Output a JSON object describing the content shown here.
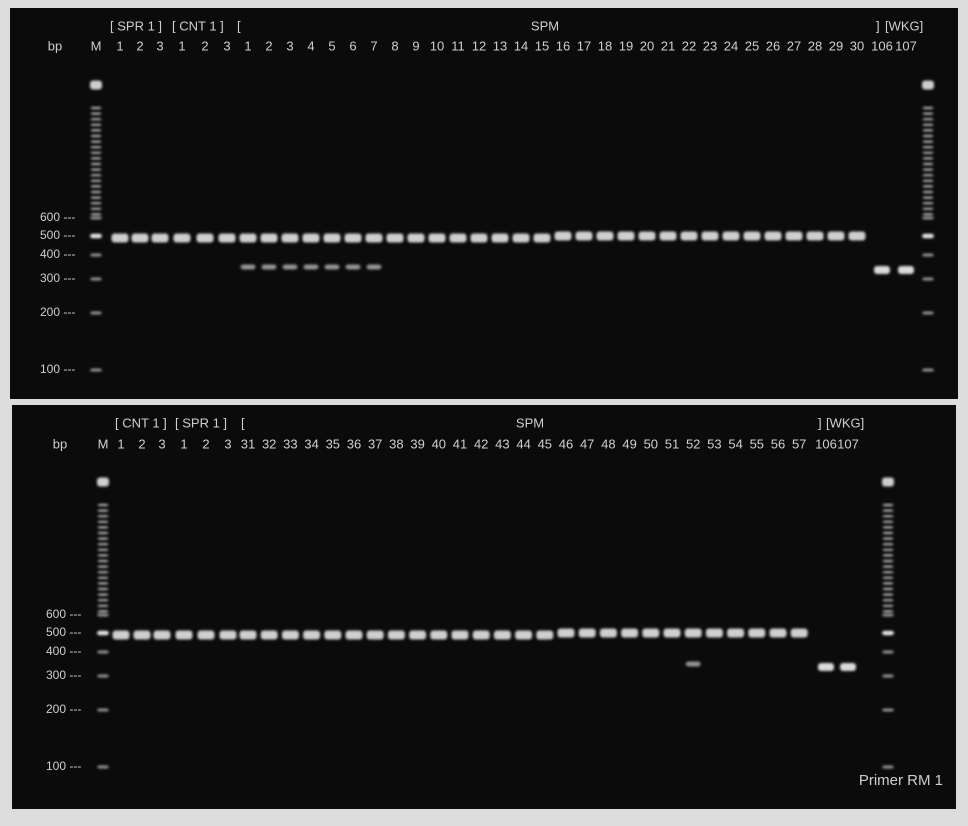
{
  "panels": [
    {
      "group_labels": [
        "[ SPR 1 ]",
        "[ CNT 1 ]",
        "[",
        "SPM",
        "]",
        "[WKG]"
      ],
      "axis_label": "bp",
      "marker_label": "M",
      "lane_labels": [
        "1",
        "2",
        "3",
        "1",
        "2",
        "3",
        "1",
        "2",
        "3",
        "4",
        "5",
        "6",
        "7",
        "8",
        "9",
        "10",
        "11",
        "12",
        "13",
        "14",
        "15",
        "16",
        "17",
        "18",
        "19",
        "20",
        "21",
        "22",
        "23",
        "24",
        "25",
        "26",
        "27",
        "28",
        "29",
        "30",
        "106",
        "107"
      ],
      "size_labels": [
        "600 ---",
        "500 ---",
        "400 ---",
        "300 ---",
        "200 ---",
        "100 ---"
      ]
    },
    {
      "group_labels": [
        "[ CNT 1 ]",
        "[ SPR 1 ]",
        "[",
        "SPM",
        "]",
        "[WKG]"
      ],
      "axis_label": "bp",
      "marker_label": "M",
      "lane_labels": [
        "1",
        "2",
        "3",
        "1",
        "2",
        "3",
        "31",
        "32",
        "33",
        "34",
        "35",
        "36",
        "37",
        "38",
        "39",
        "40",
        "41",
        "42",
        "43",
        "44",
        "45",
        "46",
        "47",
        "48",
        "49",
        "50",
        "51",
        "52",
        "53",
        "54",
        "55",
        "56",
        "57",
        "106",
        "107"
      ],
      "size_labels": [
        "600 ---",
        "500 ---",
        "400 ---",
        "300 ---",
        "200 ---",
        "100 ---"
      ],
      "caption": "Primer RM 1"
    }
  ]
}
